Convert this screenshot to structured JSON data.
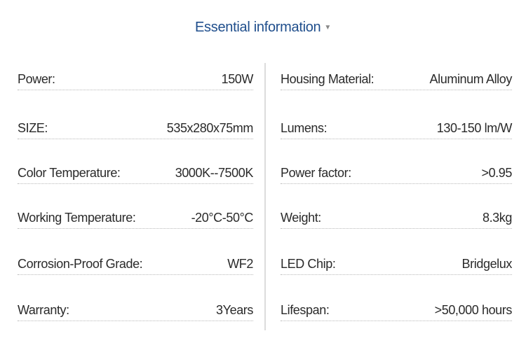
{
  "title": "Essential information",
  "title_icon": "caret-down-icon",
  "left": [
    {
      "label": "Power:",
      "value": "150W"
    },
    {
      "label": "SIZE:",
      "value": "535x280x75mm"
    },
    {
      "label": "Color Temperature:",
      "value": "3000K--7500K"
    },
    {
      "label": "Working Temperature:",
      "value": "-20°C-50°C"
    },
    {
      "label": "Corrosion-Proof Grade:",
      "value": "WF2"
    },
    {
      "label": "Warranty:",
      "value": "3Years"
    }
  ],
  "right": [
    {
      "label": "Housing Material:",
      "value": "Aluminum Alloy"
    },
    {
      "label": "Lumens:",
      "value": "130-150 lm/W"
    },
    {
      "label": "Power factor:",
      "value": ">0.95"
    },
    {
      "label": "Weight:",
      "value": "8.3kg"
    },
    {
      "label": "LED Chip:",
      "value": "Bridgelux"
    },
    {
      "label": "Lifespan:",
      "value": ">50,000 hours"
    }
  ]
}
